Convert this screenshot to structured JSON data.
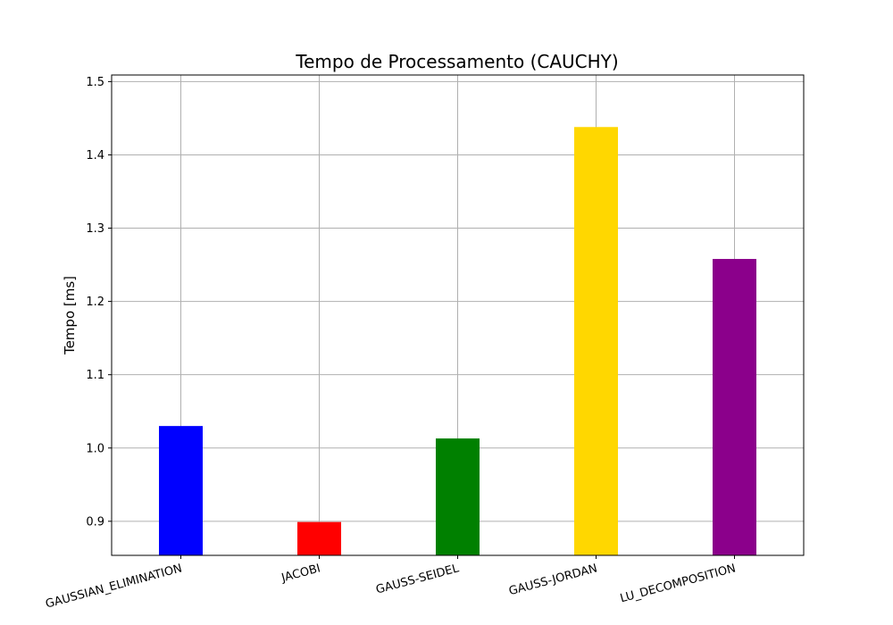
{
  "chart_data": {
    "type": "bar",
    "title": "Tempo de Processamento (CAUCHY)",
    "xlabel": "",
    "ylabel": "Tempo [ms]",
    "categories": [
      "GAUSSIAN_ELIMINATION",
      "JACOBI",
      "GAUSS-SEIDEL",
      "GAUSS-JORDAN",
      "LU_DECOMPOSITION"
    ],
    "values": [
      1.03,
      0.899,
      1.013,
      1.438,
      1.258
    ],
    "colors": [
      "#0000ff",
      "#ff0000",
      "#008000",
      "#ffd700",
      "#8b008b"
    ],
    "ylim": [
      0.8535,
      1.509
    ],
    "yticks": [
      0.9,
      1.0,
      1.1,
      1.2,
      1.3,
      1.4,
      1.5
    ],
    "ytick_labels": [
      "0.9",
      "1.0",
      "1.1",
      "1.2",
      "1.3",
      "1.4",
      "1.5"
    ],
    "grid": true,
    "legend": "none"
  }
}
